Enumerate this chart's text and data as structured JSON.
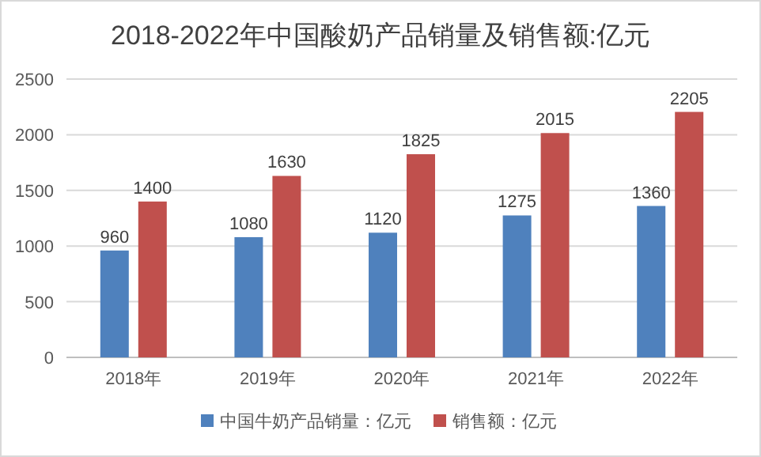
{
  "chart_data": {
    "type": "bar",
    "title": "2018-2022年中国酸奶产品销量及销售额:亿元",
    "categories": [
      "2018年",
      "2019年",
      "2020年",
      "2021年",
      "2022年"
    ],
    "series": [
      {
        "name": "中国牛奶产品销量：亿元",
        "color": "#4f81bd",
        "values": [
          960,
          1080,
          1120,
          1275,
          1360
        ]
      },
      {
        "name": "销售额：亿元",
        "color": "#c0504d",
        "values": [
          1400,
          1630,
          1825,
          2015,
          2205
        ]
      }
    ],
    "ylim": [
      0,
      2500
    ],
    "yticks": [
      0,
      500,
      1000,
      1500,
      2000,
      2500
    ],
    "grid": "y",
    "legend": "bottom",
    "data_labels": true
  }
}
